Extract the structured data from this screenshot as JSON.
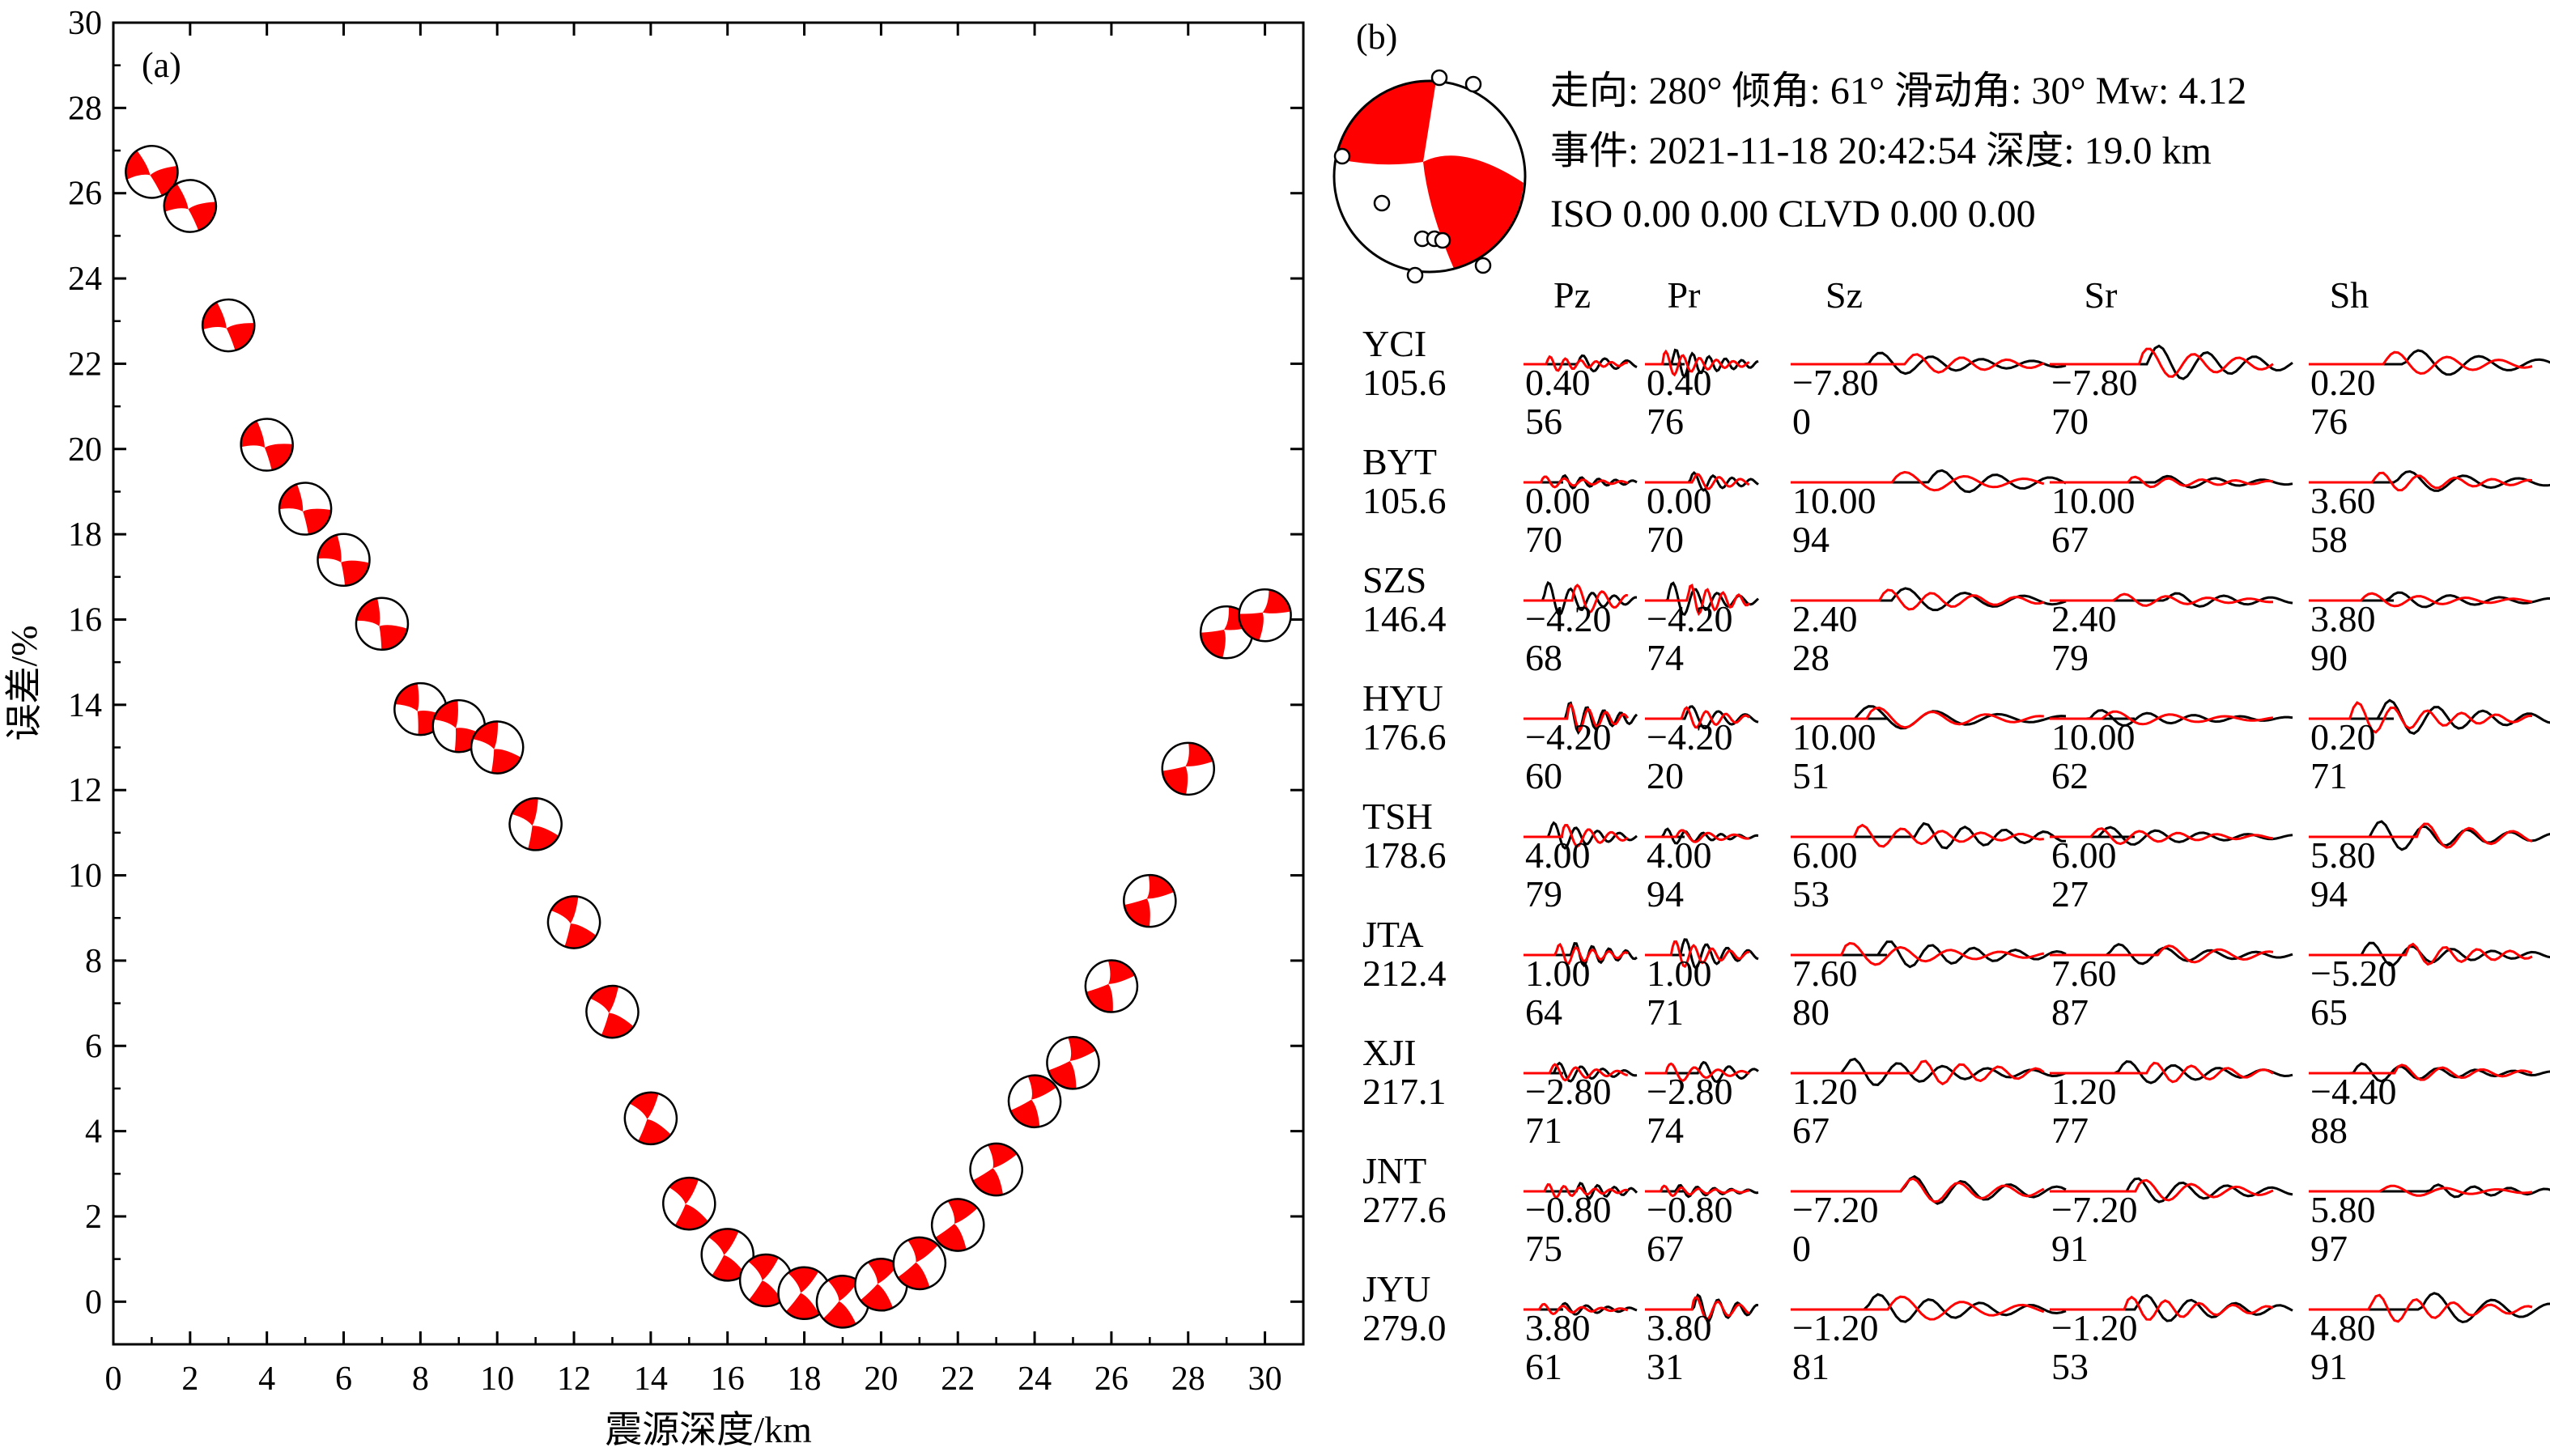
{
  "panel_a": {
    "label": "(a)",
    "chart_data": {
      "type": "scatter",
      "xlabel": "震源深度/km",
      "ylabel": "误差/%",
      "xlim": [
        0,
        31
      ],
      "ylim": [
        -1,
        30
      ],
      "xticks": [
        0,
        2,
        4,
        6,
        8,
        10,
        12,
        14,
        16,
        18,
        20,
        22,
        24,
        26,
        28,
        30
      ],
      "yticks": [
        0,
        2,
        4,
        6,
        8,
        10,
        12,
        14,
        16,
        18,
        20,
        22,
        24,
        26,
        28,
        30
      ],
      "marker": "focal-mechanism beachball",
      "x": [
        1,
        2,
        3,
        4,
        5,
        6,
        7,
        8,
        9,
        10,
        11,
        12,
        13,
        14,
        15,
        16,
        17,
        18,
        19,
        20,
        21,
        22,
        23,
        24,
        25,
        26,
        27,
        28,
        29,
        30
      ],
      "y": [
        26.5,
        25.7,
        22.9,
        20.1,
        18.6,
        17.4,
        15.9,
        13.9,
        13.5,
        13.0,
        11.2,
        8.9,
        6.8,
        4.3,
        2.3,
        1.1,
        0.5,
        0.2,
        0.0,
        0.4,
        0.9,
        1.8,
        3.1,
        4.7,
        5.6,
        7.4,
        9.4,
        12.5,
        15.7,
        16.1
      ],
      "colors": {
        "fill": "#ff0000",
        "outline": "#000000"
      }
    }
  },
  "panel_b": {
    "label": "(b)",
    "header": {
      "line1": "走向: 280°   倾角: 61°   滑动角: 30°   Mw: 4.12",
      "line2": "事件: 2021-11-18 20:42:54   深度: 19.0 km",
      "line3": "ISO 0.00 0.00 CLVD 0.00 0.00"
    },
    "components": [
      "Pz",
      "Pr",
      "Sz",
      "Sr",
      "Sh"
    ],
    "colors": {
      "observed": "#000000",
      "synthetic": "#ff0000"
    },
    "stations": [
      {
        "name": "YCI",
        "distance": "105.6",
        "shifts": [
          "0.40",
          "0.40",
          "−7.80",
          "−7.80",
          "0.20"
        ],
        "ccs": [
          "56",
          "76",
          "0",
          "70",
          "76"
        ]
      },
      {
        "name": "BYT",
        "distance": "105.6",
        "shifts": [
          "0.00",
          "0.00",
          "10.00",
          "10.00",
          "3.60"
        ],
        "ccs": [
          "70",
          "70",
          "94",
          "67",
          "58"
        ]
      },
      {
        "name": "SZS",
        "distance": "146.4",
        "shifts": [
          "−4.20",
          "−4.20",
          "2.40",
          "2.40",
          "3.80"
        ],
        "ccs": [
          "68",
          "74",
          "28",
          "79",
          "90"
        ]
      },
      {
        "name": "HYU",
        "distance": "176.6",
        "shifts": [
          "−4.20",
          "−4.20",
          "10.00",
          "10.00",
          "0.20"
        ],
        "ccs": [
          "60",
          "20",
          "51",
          "62",
          "71"
        ]
      },
      {
        "name": "TSH",
        "distance": "178.6",
        "shifts": [
          "4.00",
          "4.00",
          "6.00",
          "6.00",
          "5.80"
        ],
        "ccs": [
          "79",
          "94",
          "53",
          "27",
          "94"
        ]
      },
      {
        "name": "JTA",
        "distance": "212.4",
        "shifts": [
          "1.00",
          "1.00",
          "7.60",
          "7.60",
          "−5.20"
        ],
        "ccs": [
          "64",
          "71",
          "80",
          "87",
          "65"
        ]
      },
      {
        "name": "XJI",
        "distance": "217.1",
        "shifts": [
          "−2.80",
          "−2.80",
          "1.20",
          "1.20",
          "−4.40"
        ],
        "ccs": [
          "71",
          "74",
          "67",
          "77",
          "88"
        ]
      },
      {
        "name": "JNT",
        "distance": "277.6",
        "shifts": [
          "−0.80",
          "−0.80",
          "−7.20",
          "−7.20",
          "5.80"
        ],
        "ccs": [
          "75",
          "67",
          "0",
          "91",
          "97"
        ]
      },
      {
        "name": "JYU",
        "distance": "279.0",
        "shifts": [
          "3.80",
          "3.80",
          "−1.20",
          "−1.20",
          "4.80"
        ],
        "ccs": [
          "61",
          "31",
          "81",
          "53",
          "91"
        ]
      }
    ]
  }
}
